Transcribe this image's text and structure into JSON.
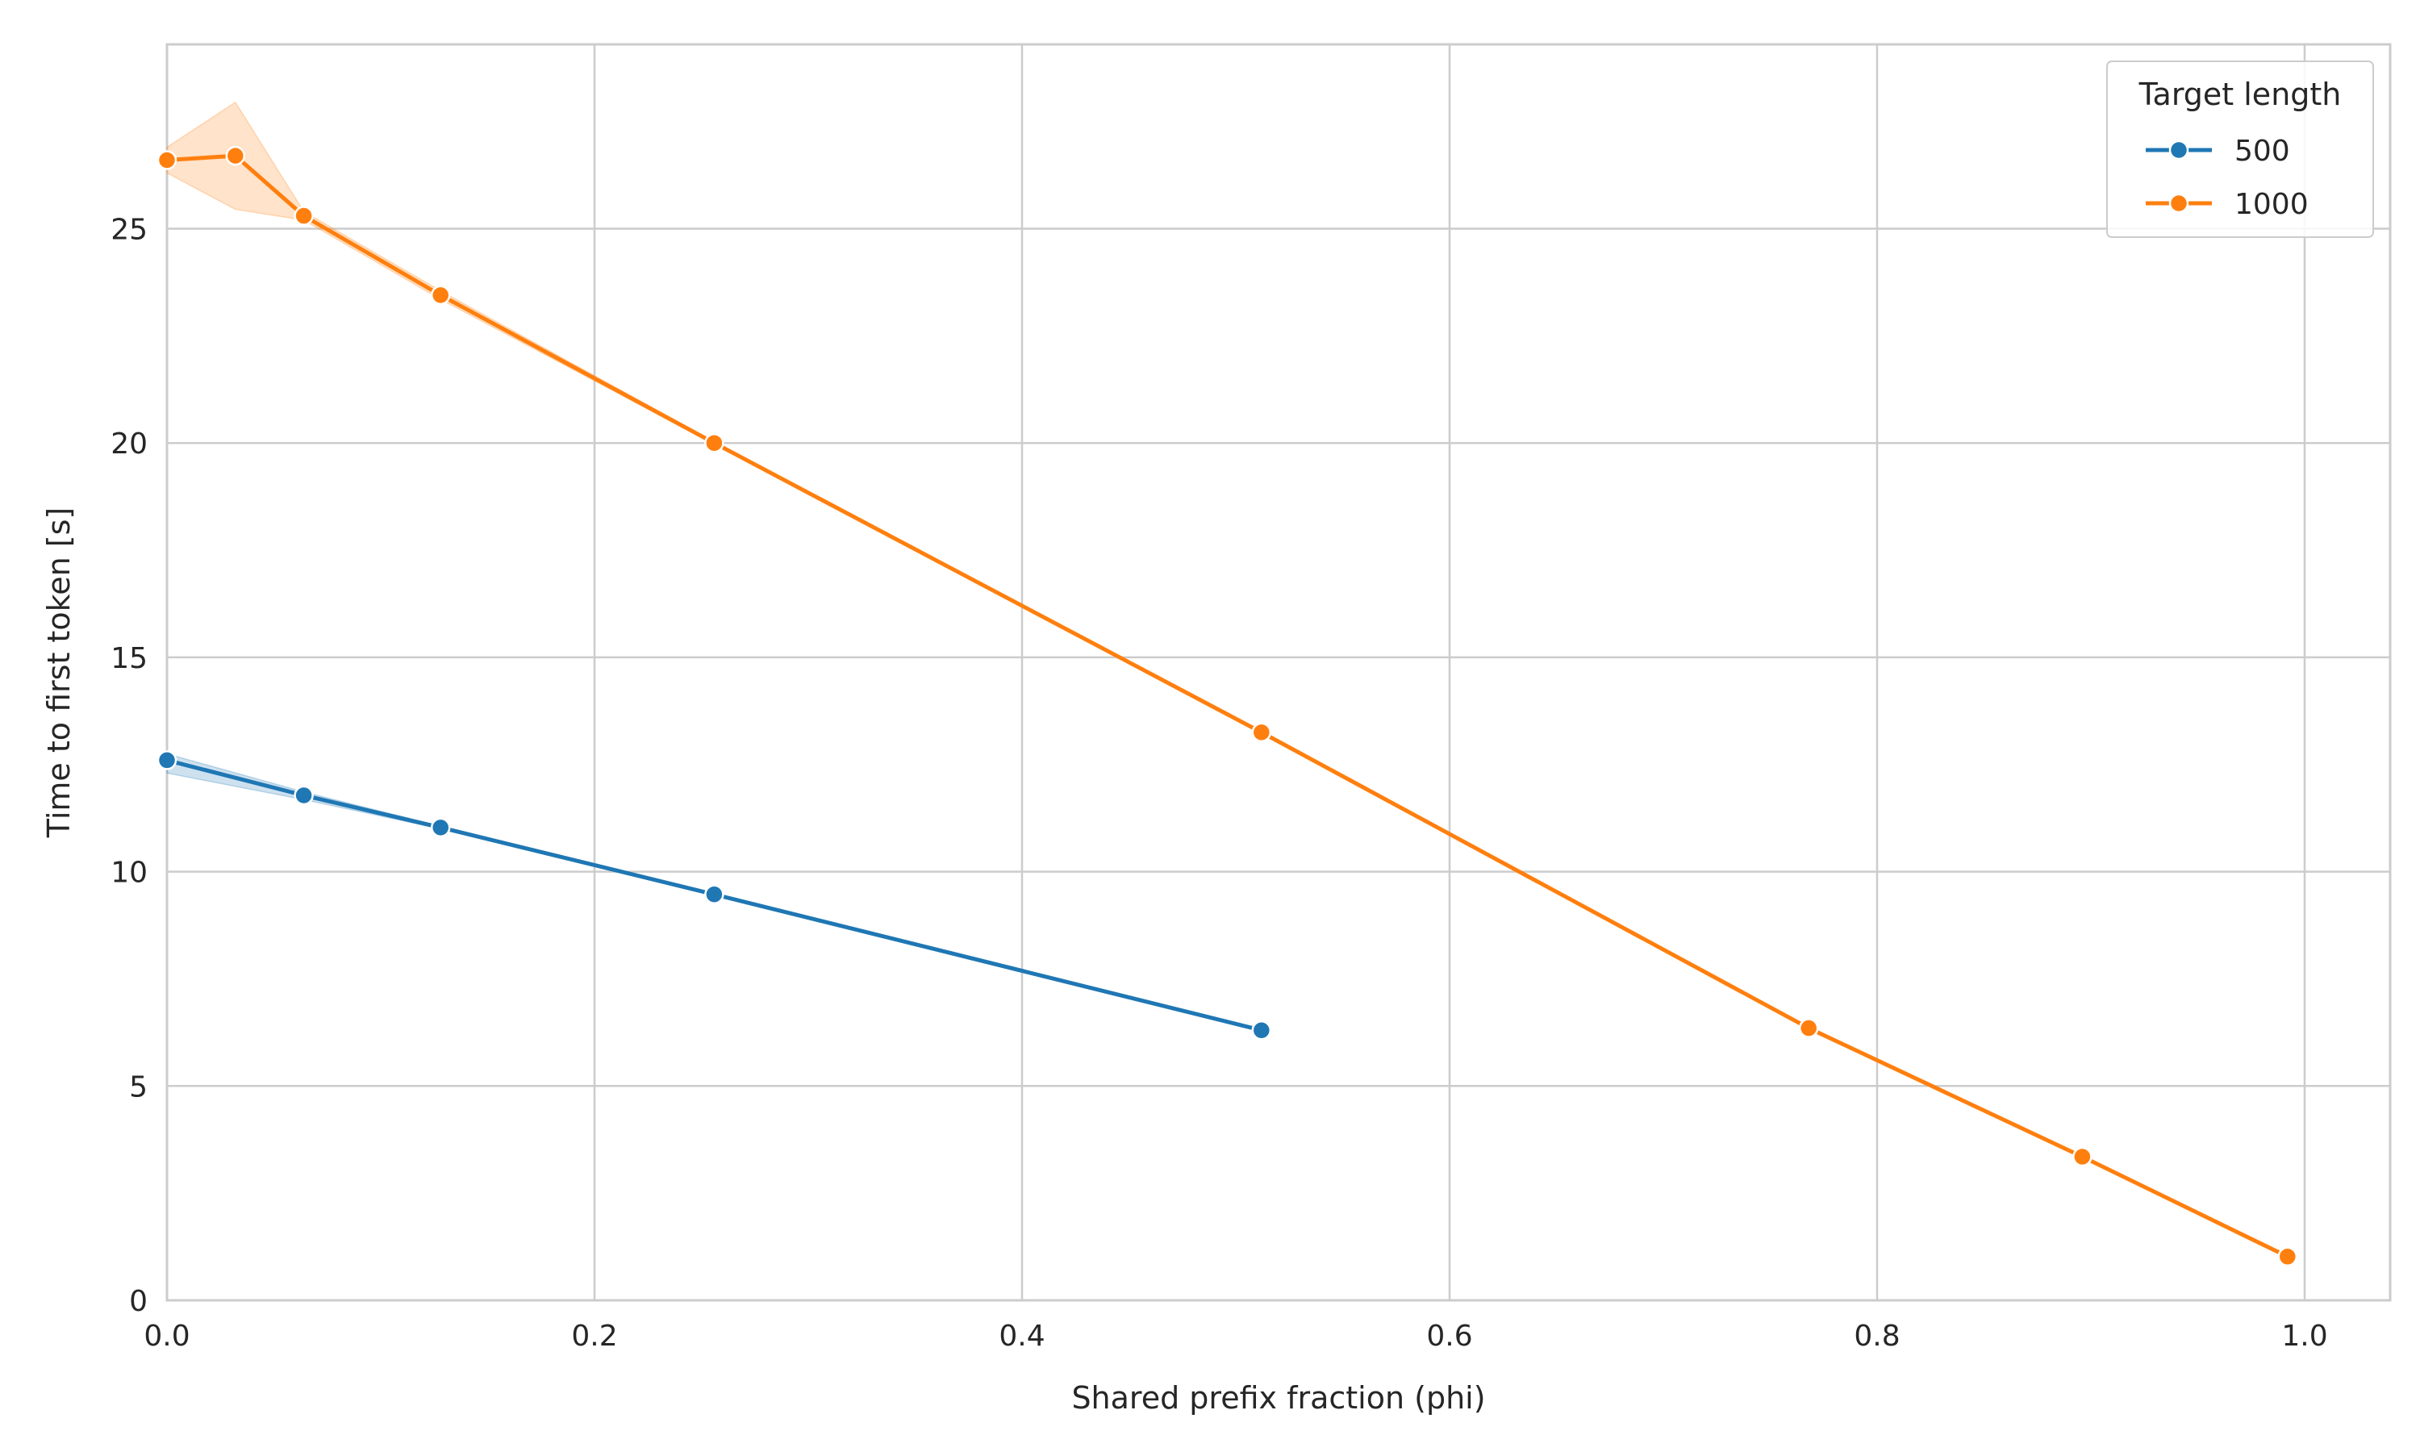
{
  "chart_data": {
    "type": "line",
    "title": "",
    "xlabel": "Shared prefix fraction (phi)",
    "ylabel": "Time to first token [s]",
    "xlim": [
      0,
      1.04
    ],
    "ylim": [
      0,
      29.3
    ],
    "xticks": [
      0.0,
      0.2,
      0.4,
      0.6,
      0.8,
      1.0
    ],
    "xtick_labels": [
      "0.0",
      "0.2",
      "0.4",
      "0.6",
      "0.8",
      "1.0"
    ],
    "yticks": [
      0,
      5,
      10,
      15,
      20,
      25
    ],
    "ytick_labels": [
      "0",
      "5",
      "10",
      "15",
      "20",
      "25"
    ],
    "grid": true,
    "legend": {
      "title": "Target length",
      "placement": "top-right"
    },
    "series": [
      {
        "name": "500",
        "color": "#1f77b4",
        "x": [
          0.0,
          0.064,
          0.128,
          0.256,
          0.512
        ],
        "y": [
          12.6,
          11.78,
          11.03,
          9.47,
          6.3
        ],
        "ci_low": [
          12.3,
          11.68,
          11.0,
          9.45,
          6.28
        ],
        "ci_high": [
          12.75,
          11.86,
          11.06,
          9.5,
          6.32
        ]
      },
      {
        "name": "1000",
        "color": "#ff7f0e",
        "x": [
          0.0,
          0.032,
          0.064,
          0.128,
          0.256,
          0.512,
          0.768,
          0.896,
          0.992
        ],
        "y": [
          26.6,
          26.7,
          25.3,
          23.45,
          20.0,
          13.25,
          6.35,
          3.35,
          1.02
        ],
        "ci_low": [
          26.3,
          25.45,
          25.2,
          23.35,
          19.97,
          13.22,
          6.33,
          3.33,
          1.0
        ],
        "ci_high": [
          26.9,
          27.95,
          25.4,
          23.55,
          20.03,
          13.28,
          6.37,
          3.37,
          1.04
        ]
      }
    ]
  }
}
